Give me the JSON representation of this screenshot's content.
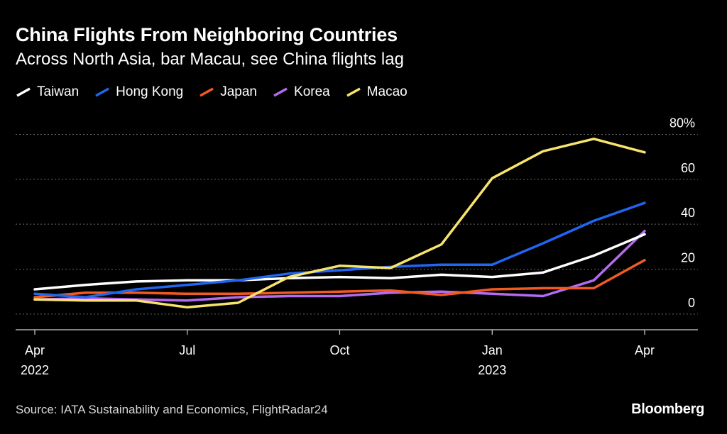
{
  "chart_data": {
    "type": "line",
    "title": "China Flights From Neighboring Countries",
    "subtitle": "Across North Asia, bar Macau, see China flights lag",
    "source": "Source: IATA Sustainability and Economics, FlightRadar24",
    "logo": "Bloomberg",
    "x": [
      "2022-04",
      "2022-05",
      "2022-06",
      "2022-07",
      "2022-08",
      "2022-09",
      "2022-10",
      "2022-11",
      "2022-12",
      "2023-01",
      "2023-02",
      "2023-03",
      "2023-04"
    ],
    "x_ticks": [
      {
        "x": "2022-04",
        "label": "Apr",
        "sublabel": "2022"
      },
      {
        "x": "2022-07",
        "label": "Jul",
        "sublabel": ""
      },
      {
        "x": "2022-10",
        "label": "Oct",
        "sublabel": ""
      },
      {
        "x": "2023-01",
        "label": "Jan",
        "sublabel": "2023"
      },
      {
        "x": "2023-04",
        "label": "Apr",
        "sublabel": ""
      }
    ],
    "y_ticks": [
      {
        "value": 0,
        "label": "0"
      },
      {
        "value": 20,
        "label": "20"
      },
      {
        "value": 40,
        "label": "40"
      },
      {
        "value": 60,
        "label": "60"
      },
      {
        "value": 80,
        "label": "80%"
      }
    ],
    "ylim": [
      -7,
      83
    ],
    "grid": true,
    "legend_position": "top-left",
    "series": [
      {
        "name": "Taiwan",
        "color": "#ffffff",
        "values": [
          11,
          13,
          14.5,
          15,
          15,
          16,
          16.5,
          16,
          17.5,
          16.5,
          18.5,
          26,
          35.5
        ]
      },
      {
        "name": "Hong Kong",
        "color": "#1f66f0",
        "values": [
          9,
          7.5,
          11,
          13,
          15,
          18,
          19.5,
          21,
          22,
          22,
          31.5,
          41.5,
          49.5
        ]
      },
      {
        "name": "Japan",
        "color": "#f25a22",
        "values": [
          7.5,
          9.5,
          9.5,
          9,
          9,
          9.5,
          10,
          10.5,
          8.5,
          11,
          11.5,
          11.5,
          24
        ]
      },
      {
        "name": "Korea",
        "color": "#b56bf0",
        "values": [
          6.5,
          7,
          6.5,
          6,
          7.5,
          8,
          8,
          9.5,
          10,
          9,
          8,
          15,
          37
        ]
      },
      {
        "name": "Macao",
        "color": "#f8e46c",
        "values": [
          6.5,
          6,
          6,
          3,
          5,
          16.5,
          21.5,
          20.5,
          31,
          60.5,
          72.5,
          78,
          72
        ]
      }
    ]
  }
}
